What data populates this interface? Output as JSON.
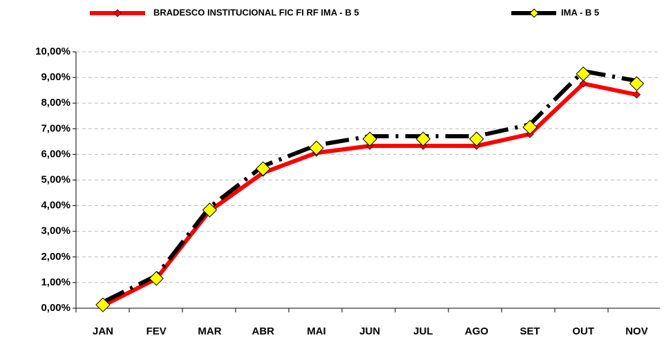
{
  "chart_data": {
    "type": "line",
    "categories": [
      "JAN",
      "FEV",
      "MAR",
      "ABR",
      "MAI",
      "JUN",
      "JUL",
      "AGO",
      "SET",
      "OUT",
      "NOV"
    ],
    "series": [
      {
        "name": "BRADESCO INSTITUCIONAL FIC FI RF IMA - B 5",
        "color": "#ff0000",
        "values": [
          0.1,
          1.15,
          3.8,
          5.28,
          6.06,
          6.33,
          6.33,
          6.33,
          6.79,
          8.76,
          8.33
        ]
      },
      {
        "name": "IMA - B 5",
        "color": "#000000",
        "values": [
          0.13,
          1.16,
          3.83,
          5.44,
          6.25,
          6.6,
          6.6,
          6.6,
          7.06,
          9.14,
          8.76
        ]
      }
    ],
    "ylim": [
      0,
      10
    ],
    "yticks": [
      {
        "value": 0,
        "label": "0,00%"
      },
      {
        "value": 1,
        "label": "1,00%"
      },
      {
        "value": 2,
        "label": "2,00%"
      },
      {
        "value": 3,
        "label": "3,00%"
      },
      {
        "value": 4,
        "label": "4,00%"
      },
      {
        "value": 5,
        "label": "5,00%"
      },
      {
        "value": 6,
        "label": "6,00%"
      },
      {
        "value": 7,
        "label": "7,00%"
      },
      {
        "value": 8,
        "label": "8,00%"
      },
      {
        "value": 9,
        "label": "9,00%"
      },
      {
        "value": 10,
        "label": "10,00%"
      }
    ],
    "grid": true
  }
}
